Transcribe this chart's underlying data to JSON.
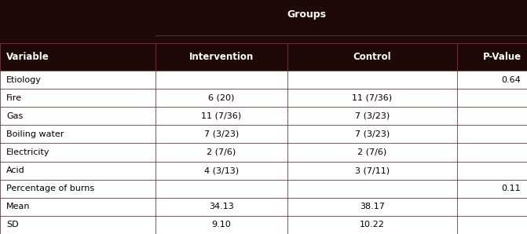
{
  "title": "Groups",
  "header_bg": "#1e0808",
  "header_text_color": "#ffffff",
  "cell_bg": "#ffffff",
  "border_color": "#7a3535",
  "title_color": "#ffffff",
  "columns": [
    "Variable",
    "Intervention",
    "Control",
    "P-Value"
  ],
  "rows": [
    [
      "Etiology",
      "",
      "",
      "0.64"
    ],
    [
      "Fire",
      "6 (20)",
      "11 (7/36)",
      ""
    ],
    [
      "Gas",
      "11 (7/36)",
      "7 (3/23)",
      ""
    ],
    [
      "Boiling water",
      "7 (3/23)",
      "7 (3/23)",
      ""
    ],
    [
      "Electricity",
      "2 (7/6)",
      "2 (7/6)",
      ""
    ],
    [
      "Acid",
      "4 (3/13)",
      "3 (7/11)",
      ""
    ],
    [
      "Percentage of burns",
      "",
      "",
      "0.11"
    ],
    [
      "Mean",
      "34.13",
      "38.17",
      ""
    ],
    [
      "SD",
      "9.10",
      "10.22",
      ""
    ]
  ],
  "fig_width": 6.71,
  "fig_height": 2.98,
  "dpi": 100
}
